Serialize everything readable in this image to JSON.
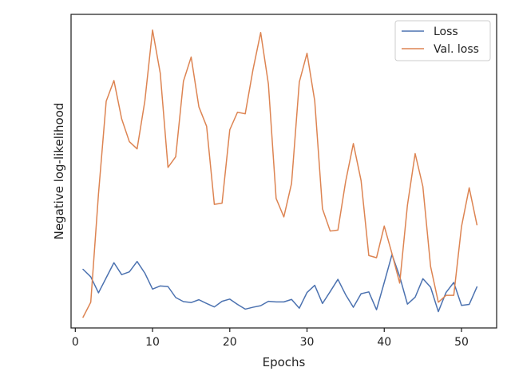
{
  "chart_data": {
    "type": "line",
    "xlabel": "Epochs",
    "ylabel": "Negative log-likelihood",
    "xlim": [
      -0.55,
      54.55
    ],
    "ylim": [
      0.0,
      1.0
    ],
    "x_ticks": [
      0,
      10,
      20,
      30,
      40,
      50
    ],
    "y_tick_labels_shown": false,
    "grid": false,
    "legend_position": "top-right",
    "x": [
      1,
      2,
      3,
      4,
      5,
      6,
      7,
      8,
      9,
      10,
      11,
      12,
      13,
      14,
      15,
      16,
      17,
      18,
      19,
      20,
      21,
      22,
      23,
      24,
      25,
      26,
      27,
      28,
      29,
      30,
      31,
      32,
      33,
      34,
      35,
      36,
      37,
      38,
      39,
      40,
      41,
      42,
      43,
      44,
      45,
      46,
      47,
      48,
      49,
      50,
      51,
      52
    ],
    "series": [
      {
        "name": "Loss",
        "color": "#4c72b0",
        "values": [
          0.187,
          0.163,
          0.112,
          0.16,
          0.208,
          0.17,
          0.179,
          0.212,
          0.175,
          0.124,
          0.134,
          0.132,
          0.097,
          0.084,
          0.081,
          0.09,
          0.078,
          0.067,
          0.085,
          0.092,
          0.075,
          0.06,
          0.066,
          0.071,
          0.085,
          0.083,
          0.083,
          0.091,
          0.063,
          0.113,
          0.136,
          0.078,
          0.116,
          0.155,
          0.106,
          0.066,
          0.109,
          0.115,
          0.058,
          0.145,
          0.234,
          0.164,
          0.076,
          0.098,
          0.157,
          0.13,
          0.052,
          0.113,
          0.145,
          0.072,
          0.075,
          0.131
        ]
      },
      {
        "name": "Val. loss",
        "color": "#dd8452",
        "values": [
          0.034,
          0.082,
          0.427,
          0.723,
          0.789,
          0.667,
          0.594,
          0.571,
          0.723,
          0.95,
          0.812,
          0.512,
          0.546,
          0.787,
          0.864,
          0.705,
          0.643,
          0.394,
          0.398,
          0.632,
          0.688,
          0.683,
          0.823,
          0.942,
          0.778,
          0.413,
          0.354,
          0.461,
          0.784,
          0.876,
          0.724,
          0.38,
          0.309,
          0.312,
          0.467,
          0.588,
          0.47,
          0.231,
          0.224,
          0.325,
          0.237,
          0.143,
          0.391,
          0.556,
          0.451,
          0.196,
          0.082,
          0.104,
          0.104,
          0.323,
          0.447,
          0.329
        ]
      }
    ]
  }
}
